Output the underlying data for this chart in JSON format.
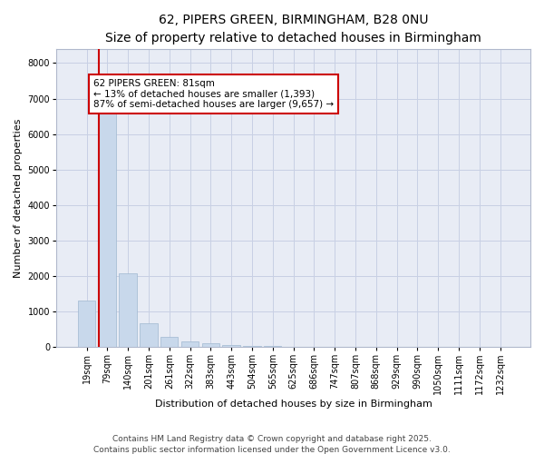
{
  "title_line1": "62, PIPERS GREEN, BIRMINGHAM, B28 0NU",
  "title_line2": "Size of property relative to detached houses in Birmingham",
  "xlabel": "Distribution of detached houses by size in Birmingham",
  "ylabel": "Number of detached properties",
  "categories": [
    "19sqm",
    "79sqm",
    "140sqm",
    "201sqm",
    "261sqm",
    "322sqm",
    "383sqm",
    "443sqm",
    "504sqm",
    "565sqm",
    "625sqm",
    "686sqm",
    "747sqm",
    "807sqm",
    "868sqm",
    "929sqm",
    "990sqm",
    "1050sqm",
    "1111sqm",
    "1172sqm",
    "1232sqm"
  ],
  "values": [
    1300,
    6620,
    2080,
    670,
    290,
    150,
    90,
    55,
    30,
    20,
    12,
    8,
    5,
    3,
    2,
    2,
    1,
    1,
    0,
    0,
    0
  ],
  "bar_color": "#c8d8eb",
  "bar_edge_color": "#a0b8d0",
  "vline_color": "#cc0000",
  "annotation_text": "62 PIPERS GREEN: 81sqm\n← 13% of detached houses are smaller (1,393)\n87% of semi-detached houses are larger (9,657) →",
  "annotation_box_edgecolor": "#cc0000",
  "ylim": [
    0,
    8400
  ],
  "yticks": [
    0,
    1000,
    2000,
    3000,
    4000,
    5000,
    6000,
    7000,
    8000
  ],
  "grid_color": "#c8d0e4",
  "background_color": "#e8ecf5",
  "footer_line1": "Contains HM Land Registry data © Crown copyright and database right 2025.",
  "footer_line2": "Contains public sector information licensed under the Open Government Licence v3.0.",
  "title_fontsize": 10,
  "subtitle_fontsize": 9,
  "axis_label_fontsize": 8,
  "tick_fontsize": 7,
  "annotation_fontsize": 7.5,
  "footer_fontsize": 6.5
}
